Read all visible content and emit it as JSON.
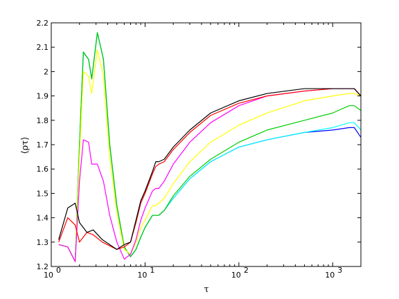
{
  "chart_data": {
    "type": "line",
    "title": "",
    "xlabel": "τ",
    "ylabel": "⟨ρτ⟩",
    "xscale": "log",
    "xlim": [
      1,
      2000
    ],
    "ylim": [
      1.2,
      2.2
    ],
    "grid": false,
    "legend": "none",
    "x_ticks": [
      {
        "value": 1,
        "base": "10",
        "exp": "0"
      },
      {
        "value": 10,
        "base": "10",
        "exp": "1"
      },
      {
        "value": 100,
        "base": "10",
        "exp": "2"
      },
      {
        "value": 1000,
        "base": "10",
        "exp": "3"
      }
    ],
    "y_ticks": [
      {
        "value": 1.2,
        "label": "1.2"
      },
      {
        "value": 1.3,
        "label": "1.3"
      },
      {
        "value": 1.4,
        "label": "1.4"
      },
      {
        "value": 1.5,
        "label": "1.5"
      },
      {
        "value": 1.6,
        "label": "1.6"
      },
      {
        "value": 1.7,
        "label": "1.7"
      },
      {
        "value": 1.8,
        "label": "1.8"
      },
      {
        "value": 1.9,
        "label": "1.9"
      },
      {
        "value": 2,
        "label": "2"
      },
      {
        "value": 2.1,
        "label": "2.1"
      },
      {
        "value": 2.2,
        "label": "2.2"
      }
    ],
    "series": [
      {
        "color": "#0000ff",
        "points": [
          [
            1.2,
            1.29
          ],
          [
            1.5,
            1.28
          ],
          [
            1.8,
            1.22
          ],
          [
            2.0,
            1.7
          ],
          [
            2.2,
            2.08
          ],
          [
            2.5,
            2.05
          ],
          [
            2.7,
            1.97
          ],
          [
            3.1,
            2.16
          ],
          [
            3.6,
            2.05
          ],
          [
            4.2,
            1.7
          ],
          [
            5,
            1.45
          ],
          [
            6,
            1.28
          ],
          [
            7,
            1.24
          ],
          [
            8,
            1.27
          ],
          [
            9,
            1.32
          ],
          [
            10,
            1.36
          ],
          [
            12,
            1.41
          ],
          [
            13,
            1.41
          ],
          [
            14,
            1.41
          ],
          [
            16,
            1.43
          ],
          [
            20,
            1.48
          ],
          [
            30,
            1.56
          ],
          [
            50,
            1.63
          ],
          [
            100,
            1.69
          ],
          [
            200,
            1.72
          ],
          [
            500,
            1.75
          ],
          [
            1000,
            1.76
          ],
          [
            1500,
            1.77
          ],
          [
            1700,
            1.77
          ],
          [
            2000,
            1.73
          ]
        ]
      },
      {
        "color": "#00ffff",
        "points": [
          [
            1.2,
            1.29
          ],
          [
            1.5,
            1.28
          ],
          [
            1.8,
            1.22
          ],
          [
            2.0,
            1.7
          ],
          [
            2.2,
            2.08
          ],
          [
            2.5,
            2.05
          ],
          [
            2.7,
            1.97
          ],
          [
            3.1,
            2.16
          ],
          [
            3.6,
            2.05
          ],
          [
            4.2,
            1.7
          ],
          [
            5,
            1.45
          ],
          [
            6,
            1.28
          ],
          [
            7,
            1.24
          ],
          [
            8,
            1.27
          ],
          [
            9,
            1.32
          ],
          [
            10,
            1.36
          ],
          [
            12,
            1.41
          ],
          [
            13,
            1.41
          ],
          [
            14,
            1.41
          ],
          [
            16,
            1.43
          ],
          [
            20,
            1.48
          ],
          [
            30,
            1.56
          ],
          [
            50,
            1.63
          ],
          [
            100,
            1.69
          ],
          [
            200,
            1.72
          ],
          [
            500,
            1.75
          ],
          [
            1000,
            1.77
          ],
          [
            1500,
            1.79
          ],
          [
            1700,
            1.79
          ],
          [
            2000,
            1.76
          ]
        ]
      },
      {
        "color": "#00cc00",
        "points": [
          [
            1.2,
            1.29
          ],
          [
            1.5,
            1.28
          ],
          [
            1.8,
            1.22
          ],
          [
            2.0,
            1.7
          ],
          [
            2.2,
            2.08
          ],
          [
            2.5,
            2.05
          ],
          [
            2.7,
            1.97
          ],
          [
            3.1,
            2.16
          ],
          [
            3.6,
            2.05
          ],
          [
            4.2,
            1.7
          ],
          [
            5,
            1.45
          ],
          [
            6,
            1.28
          ],
          [
            7,
            1.24
          ],
          [
            8,
            1.27
          ],
          [
            9,
            1.32
          ],
          [
            10,
            1.36
          ],
          [
            12,
            1.41
          ],
          [
            13,
            1.41
          ],
          [
            14,
            1.41
          ],
          [
            16,
            1.43
          ],
          [
            20,
            1.49
          ],
          [
            30,
            1.57
          ],
          [
            50,
            1.64
          ],
          [
            100,
            1.71
          ],
          [
            200,
            1.76
          ],
          [
            500,
            1.8
          ],
          [
            1000,
            1.83
          ],
          [
            1500,
            1.86
          ],
          [
            1700,
            1.86
          ],
          [
            2000,
            1.84
          ]
        ]
      },
      {
        "color": "#ffff00",
        "points": [
          [
            1.2,
            1.29
          ],
          [
            1.5,
            1.28
          ],
          [
            1.8,
            1.22
          ],
          [
            2.0,
            1.65
          ],
          [
            2.2,
            2.0
          ],
          [
            2.5,
            1.98
          ],
          [
            2.7,
            1.91
          ],
          [
            3.1,
            2.09
          ],
          [
            3.6,
            1.98
          ],
          [
            4.2,
            1.65
          ],
          [
            5,
            1.42
          ],
          [
            6,
            1.27
          ],
          [
            7,
            1.25
          ],
          [
            8,
            1.3
          ],
          [
            9,
            1.36
          ],
          [
            10,
            1.39
          ],
          [
            12,
            1.45
          ],
          [
            13,
            1.45
          ],
          [
            14,
            1.46
          ],
          [
            16,
            1.48
          ],
          [
            20,
            1.54
          ],
          [
            30,
            1.63
          ],
          [
            50,
            1.71
          ],
          [
            100,
            1.78
          ],
          [
            200,
            1.83
          ],
          [
            500,
            1.88
          ],
          [
            1000,
            1.9
          ],
          [
            1500,
            1.91
          ],
          [
            1700,
            1.91
          ],
          [
            2000,
            1.9
          ]
        ]
      },
      {
        "color": "#ff00ff",
        "points": [
          [
            1.2,
            1.29
          ],
          [
            1.5,
            1.28
          ],
          [
            1.8,
            1.22
          ],
          [
            2.0,
            1.55
          ],
          [
            2.2,
            1.72
          ],
          [
            2.5,
            1.71
          ],
          [
            2.7,
            1.62
          ],
          [
            3.1,
            1.62
          ],
          [
            3.6,
            1.55
          ],
          [
            4.2,
            1.41
          ],
          [
            5,
            1.3
          ],
          [
            6,
            1.23
          ],
          [
            7,
            1.25
          ],
          [
            8,
            1.31
          ],
          [
            9,
            1.39
          ],
          [
            10,
            1.44
          ],
          [
            12,
            1.51
          ],
          [
            13,
            1.52
          ],
          [
            14,
            1.52
          ],
          [
            16,
            1.55
          ],
          [
            20,
            1.62
          ],
          [
            30,
            1.71
          ],
          [
            50,
            1.79
          ],
          [
            100,
            1.86
          ],
          [
            200,
            1.9
          ],
          [
            500,
            1.92
          ],
          [
            1000,
            1.93
          ],
          [
            1500,
            1.93
          ],
          [
            1700,
            1.93
          ],
          [
            2000,
            1.9
          ]
        ]
      },
      {
        "color": "#ff0000",
        "points": [
          [
            1.2,
            1.3
          ],
          [
            1.5,
            1.4
          ],
          [
            1.8,
            1.37
          ],
          [
            2.0,
            1.3
          ],
          [
            2.4,
            1.34
          ],
          [
            2.8,
            1.33
          ],
          [
            3.5,
            1.3
          ],
          [
            5,
            1.27
          ],
          [
            6,
            1.28
          ],
          [
            7,
            1.3
          ],
          [
            8,
            1.38
          ],
          [
            9,
            1.46
          ],
          [
            10,
            1.5
          ],
          [
            12,
            1.58
          ],
          [
            13,
            1.61
          ],
          [
            14,
            1.62
          ],
          [
            16,
            1.63
          ],
          [
            20,
            1.68
          ],
          [
            30,
            1.75
          ],
          [
            50,
            1.82
          ],
          [
            100,
            1.87
          ],
          [
            200,
            1.9
          ],
          [
            500,
            1.92
          ],
          [
            1000,
            1.93
          ],
          [
            1500,
            1.93
          ],
          [
            1700,
            1.93
          ],
          [
            2000,
            1.9
          ]
        ]
      },
      {
        "color": "#000000",
        "points": [
          [
            1.2,
            1.31
          ],
          [
            1.5,
            1.44
          ],
          [
            1.8,
            1.46
          ],
          [
            2.0,
            1.38
          ],
          [
            2.4,
            1.34
          ],
          [
            2.8,
            1.35
          ],
          [
            3.5,
            1.31
          ],
          [
            5,
            1.27
          ],
          [
            6,
            1.29
          ],
          [
            7,
            1.3
          ],
          [
            8,
            1.39
          ],
          [
            9,
            1.47
          ],
          [
            10,
            1.51
          ],
          [
            12,
            1.59
          ],
          [
            13,
            1.63
          ],
          [
            14,
            1.63
          ],
          [
            16,
            1.64
          ],
          [
            20,
            1.69
          ],
          [
            30,
            1.76
          ],
          [
            50,
            1.83
          ],
          [
            100,
            1.88
          ],
          [
            200,
            1.91
          ],
          [
            500,
            1.93
          ],
          [
            1000,
            1.93
          ],
          [
            1500,
            1.93
          ],
          [
            1700,
            1.93
          ],
          [
            2000,
            1.9
          ]
        ]
      }
    ]
  }
}
